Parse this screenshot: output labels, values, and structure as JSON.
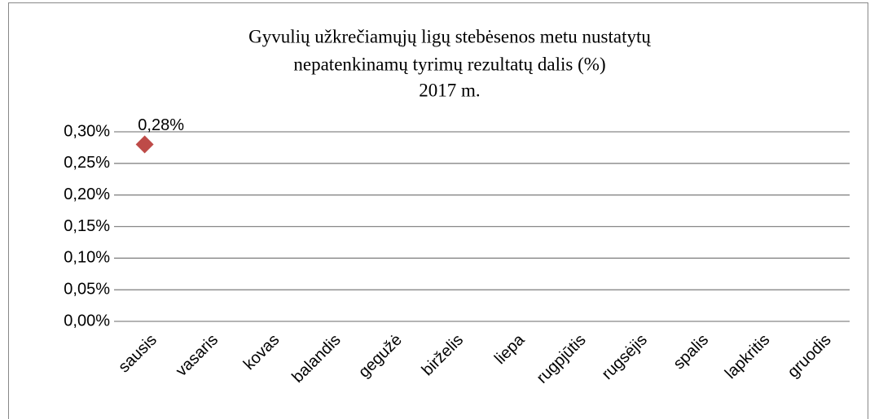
{
  "chart_data": {
    "type": "line",
    "title": [
      "Gyvulių užkrečiamųjų  ligų stebėsenos metu nustatytų",
      "nepatenkinamų tyrimų rezultatų dalis (%)",
      "2017  m."
    ],
    "categories": [
      "sausis",
      "vasaris",
      "kovas",
      "balandis",
      "gegužė",
      "birželis",
      "liepa",
      "rugpjūtis",
      "rugsėjis",
      "spalis",
      "lapkritis",
      "gruodis"
    ],
    "series": [
      {
        "color": "#be4b48",
        "values": [
          0.28,
          null,
          null,
          null,
          null,
          null,
          null,
          null,
          null,
          null,
          null,
          null
        ],
        "value_labels": [
          "0,28%",
          null,
          null,
          null,
          null,
          null,
          null,
          null,
          null,
          null,
          null,
          null
        ]
      }
    ],
    "ylim": [
      0,
      0.3
    ],
    "yticks": [
      {
        "value": 0,
        "label": "0,00%"
      },
      {
        "value": 0.05,
        "label": "0,05%"
      },
      {
        "value": 0.1,
        "label": "0,10%"
      },
      {
        "value": 0.15,
        "label": "0,15%"
      },
      {
        "value": 0.2,
        "label": "0,20%"
      },
      {
        "value": 0.25,
        "label": "0,25%"
      },
      {
        "value": 0.3,
        "label": "0,30%"
      }
    ],
    "grid": true
  }
}
